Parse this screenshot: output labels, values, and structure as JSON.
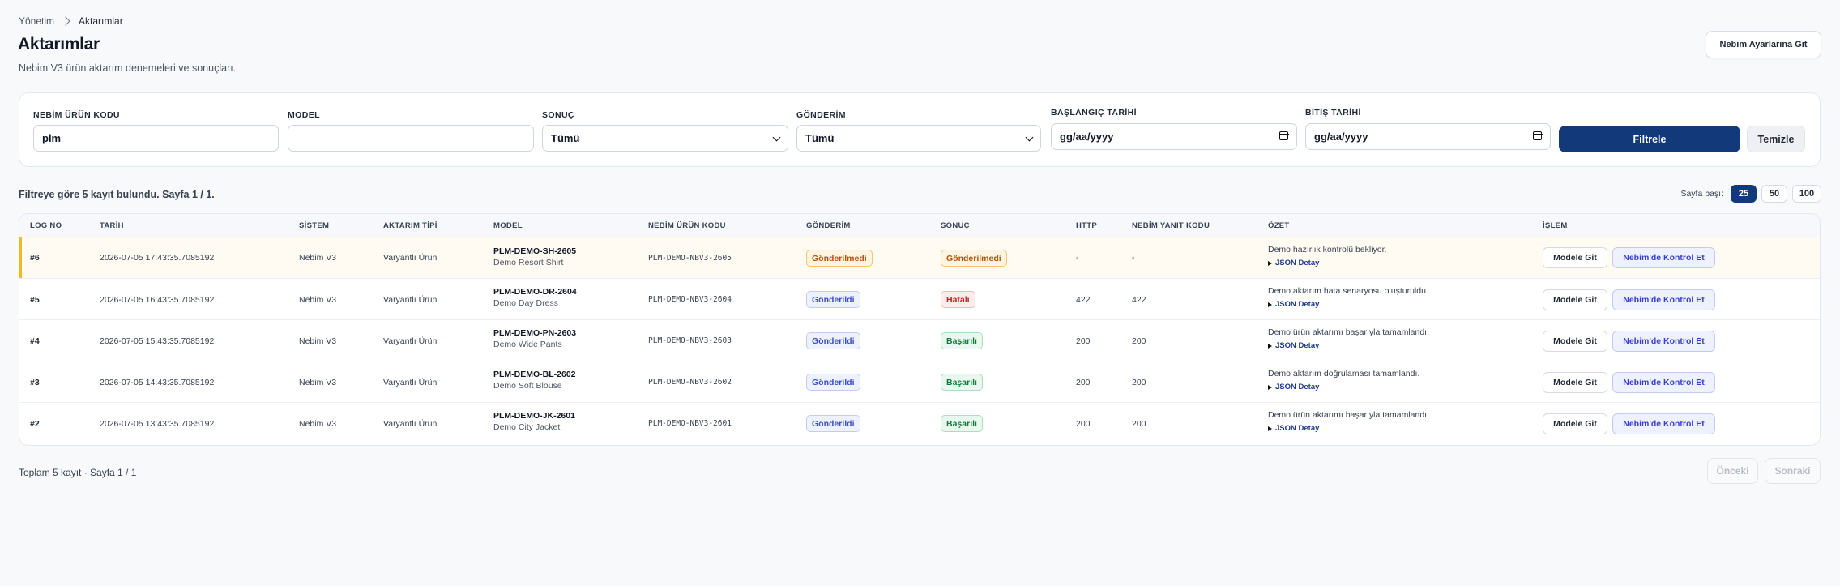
{
  "breadcrumb": {
    "parent": "Yönetim",
    "current": "Aktarımlar"
  },
  "page": {
    "title": "Aktarımlar",
    "subtitle": "Nebim V3 ürün aktarım denemeleri ve sonuçları."
  },
  "header": {
    "settings_button": "Nebim Ayarlarına Git"
  },
  "filters": {
    "product_code": {
      "label": "NEBİM ÜRÜN KODU",
      "value": "plm"
    },
    "model": {
      "label": "MODEL",
      "value": ""
    },
    "result": {
      "label": "SONUÇ",
      "value": "Tümü"
    },
    "sent": {
      "label": "GÖNDERİM",
      "value": "Tümü"
    },
    "start_date": {
      "label": "BAŞLANGIÇ TARİHİ",
      "value": "gg/aa/yyyy"
    },
    "end_date": {
      "label": "BİTİŞ TARİHİ",
      "value": "gg/aa/yyyy"
    },
    "filter_button": "Filtrele",
    "clear_button": "Temizle"
  },
  "results": {
    "info": "Filtreye göre 5 kayıt bulundu. Sayfa 1 / 1.",
    "page_size_label": "Sayfa başı:",
    "page_sizes": [
      "25",
      "50",
      "100"
    ],
    "page_size_selected": "25"
  },
  "table": {
    "columns": [
      "LOG NO",
      "TARİH",
      "SİSTEM",
      "AKTARIM TİPİ",
      "MODEL",
      "NEBİM ÜRÜN KODU",
      "GÖNDERİM",
      "SONUÇ",
      "HTTP",
      "NEBİM YANIT KODU",
      "ÖZET",
      "İŞLEM"
    ],
    "json_detail_label": "JSON Detay",
    "action_model": "Modele Git",
    "action_nebim": "Nebim'de Kontrol Et",
    "rows": [
      {
        "log_no": "#6",
        "date": "2026-07-05 17:43:35.7085192",
        "system": "Nebim V3",
        "type": "Varyantlı Ürün",
        "model_code": "PLM-DEMO-SH-2605",
        "model_name": "Demo Resort Shirt",
        "nebim_code": "PLM-DEMO-NBV3-2605",
        "sent": "Gönderilmedi",
        "result": "Gönderilmedi",
        "http": "-",
        "response_code": "-",
        "summary": "Demo hazırlık kontrolü bekliyor."
      },
      {
        "log_no": "#5",
        "date": "2026-07-05 16:43:35.7085192",
        "system": "Nebim V3",
        "type": "Varyantlı Ürün",
        "model_code": "PLM-DEMO-DR-2604",
        "model_name": "Demo Day Dress",
        "nebim_code": "PLM-DEMO-NBV3-2604",
        "sent": "Gönderildi",
        "result": "Hatalı",
        "http": "422",
        "response_code": "422",
        "summary": "Demo aktarım hata senaryosu oluşturuldu."
      },
      {
        "log_no": "#4",
        "date": "2026-07-05 15:43:35.7085192",
        "system": "Nebim V3",
        "type": "Varyantlı Ürün",
        "model_code": "PLM-DEMO-PN-2603",
        "model_name": "Demo Wide Pants",
        "nebim_code": "PLM-DEMO-NBV3-2603",
        "sent": "Gönderildi",
        "result": "Başarılı",
        "http": "200",
        "response_code": "200",
        "summary": "Demo ürün aktarımı başarıyla tamamlandı."
      },
      {
        "log_no": "#3",
        "date": "2026-07-05 14:43:35.7085192",
        "system": "Nebim V3",
        "type": "Varyantlı Ürün",
        "model_code": "PLM-DEMO-BL-2602",
        "model_name": "Demo Soft Blouse",
        "nebim_code": "PLM-DEMO-NBV3-2602",
        "sent": "Gönderildi",
        "result": "Başarılı",
        "http": "200",
        "response_code": "200",
        "summary": "Demo aktarım doğrulaması tamamlandı."
      },
      {
        "log_no": "#2",
        "date": "2026-07-05 13:43:35.7085192",
        "system": "Nebim V3",
        "type": "Varyantlı Ürün",
        "model_code": "PLM-DEMO-JK-2601",
        "model_name": "Demo City Jacket",
        "nebim_code": "PLM-DEMO-NBV3-2601",
        "sent": "Gönderildi",
        "result": "Başarılı",
        "http": "200",
        "response_code": "200",
        "summary": "Demo ürün aktarımı başarıyla tamamlandı."
      }
    ]
  },
  "footer": {
    "info": "Toplam 5 kayıt · Sayfa 1 / 1",
    "prev": "Önceki",
    "next": "Sonraki"
  },
  "colors": {
    "primary": "#123a7a",
    "warning_accent": "#f2b627"
  }
}
